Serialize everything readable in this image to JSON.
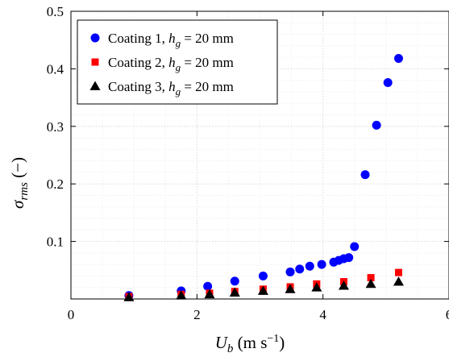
{
  "chart_data": {
    "type": "scatter",
    "xlabel": "U_b (m s^-1)",
    "ylabel": "σ_rms (−)",
    "xlim": [
      0,
      6
    ],
    "ylim": [
      0,
      0.5
    ],
    "xticks": [
      "0",
      "2",
      "4",
      "6"
    ],
    "yticks": [
      "0.1",
      "0.2",
      "0.3",
      "0.4",
      "0.5"
    ],
    "grid": true,
    "legend_position": "top-left",
    "series": [
      {
        "name": "Coating 1, h_g = 20 mm",
        "marker": "circle",
        "color": "#0000ff",
        "points": [
          [
            0.92,
            0.006
          ],
          [
            1.75,
            0.014
          ],
          [
            2.17,
            0.022
          ],
          [
            2.6,
            0.031
          ],
          [
            3.05,
            0.04
          ],
          [
            3.48,
            0.047
          ],
          [
            3.63,
            0.052
          ],
          [
            3.79,
            0.057
          ],
          [
            3.98,
            0.06
          ],
          [
            4.17,
            0.064
          ],
          [
            4.25,
            0.067
          ],
          [
            4.33,
            0.07
          ],
          [
            4.41,
            0.072
          ],
          [
            4.5,
            0.091
          ],
          [
            4.67,
            0.216
          ],
          [
            4.85,
            0.302
          ],
          [
            5.03,
            0.376
          ],
          [
            5.2,
            0.418
          ]
        ]
      },
      {
        "name": "Coating 2, h_g = 20 mm",
        "marker": "square",
        "color": "#ff0000",
        "points": [
          [
            0.92,
            0.004
          ],
          [
            1.75,
            0.008
          ],
          [
            2.2,
            0.01
          ],
          [
            2.6,
            0.013
          ],
          [
            3.05,
            0.017
          ],
          [
            3.48,
            0.021
          ],
          [
            3.9,
            0.026
          ],
          [
            4.33,
            0.03
          ],
          [
            4.76,
            0.037
          ],
          [
            5.2,
            0.046
          ]
        ]
      },
      {
        "name": "Coating 3, h_g = 20 mm",
        "marker": "triangle",
        "color": "#000000",
        "points": [
          [
            0.92,
            0.003
          ],
          [
            1.75,
            0.006
          ],
          [
            2.2,
            0.008
          ],
          [
            2.6,
            0.011
          ],
          [
            3.05,
            0.014
          ],
          [
            3.48,
            0.017
          ],
          [
            3.9,
            0.02
          ],
          [
            4.33,
            0.023
          ],
          [
            4.76,
            0.026
          ],
          [
            5.2,
            0.03
          ]
        ]
      }
    ]
  }
}
